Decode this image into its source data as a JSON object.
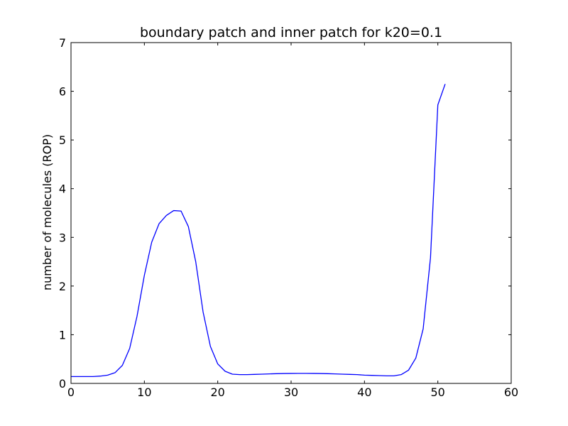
{
  "chart_data": {
    "type": "line",
    "title": "boundary patch and inner patch for k20=0.1",
    "xlabel": "",
    "ylabel": "number of molecules (ROP)",
    "xlim": [
      0,
      60
    ],
    "ylim": [
      0,
      7
    ],
    "xticks": [
      0,
      10,
      20,
      30,
      40,
      50,
      60
    ],
    "yticks": [
      0,
      1,
      2,
      3,
      4,
      5,
      6,
      7
    ],
    "grid": false,
    "line_color": "#0000ff",
    "series": [
      {
        "x": [
          0,
          1,
          2,
          3,
          4,
          5,
          6,
          7,
          8,
          9,
          10,
          11,
          12,
          13,
          14,
          15,
          16,
          17,
          18,
          19,
          20,
          21,
          22,
          23,
          24,
          25,
          26,
          27,
          28,
          29,
          30,
          31,
          32,
          33,
          34,
          35,
          36,
          37,
          38,
          39,
          40,
          41,
          42,
          43,
          44,
          45,
          46,
          47,
          48,
          49,
          50,
          51
        ],
        "y": [
          0.14,
          0.14,
          0.14,
          0.14,
          0.15,
          0.17,
          0.22,
          0.37,
          0.72,
          1.38,
          2.22,
          2.9,
          3.28,
          3.45,
          3.55,
          3.54,
          3.22,
          2.5,
          1.47,
          0.76,
          0.4,
          0.25,
          0.19,
          0.18,
          0.18,
          0.185,
          0.19,
          0.195,
          0.2,
          0.203,
          0.205,
          0.206,
          0.206,
          0.205,
          0.203,
          0.2,
          0.195,
          0.19,
          0.185,
          0.18,
          0.17,
          0.165,
          0.16,
          0.155,
          0.155,
          0.18,
          0.27,
          0.52,
          1.12,
          2.58,
          5.72,
          6.15
        ]
      }
    ]
  }
}
